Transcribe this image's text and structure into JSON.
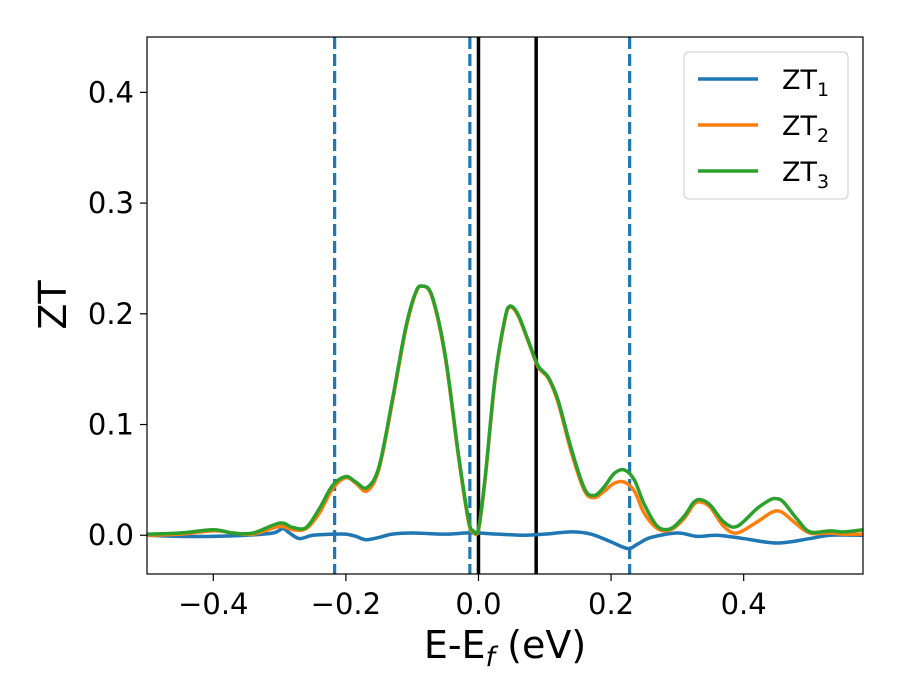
{
  "chart_data": {
    "type": "line",
    "xlabel": "E-E_f (eV)",
    "xlabel_parts": {
      "main": "E-E",
      "sub": "f",
      "tail": " (eV)"
    },
    "ylabel": "ZT",
    "xlim": [
      -0.5,
      0.58
    ],
    "ylim": [
      -0.035,
      0.45
    ],
    "xticks": [
      -0.4,
      -0.2,
      0.0,
      0.2,
      0.4
    ],
    "xtick_labels": [
      "−0.4",
      "−0.2",
      "0.0",
      "0.2",
      "0.4"
    ],
    "yticks": [
      0.0,
      0.1,
      0.2,
      0.3,
      0.4
    ],
    "ytick_labels": [
      "0.0",
      "0.1",
      "0.2",
      "0.3",
      "0.4"
    ],
    "grid": false,
    "legend_position": "top-right",
    "vlines": [
      {
        "x": -0.217,
        "style": "dashed",
        "color": "#1f77b4"
      },
      {
        "x": -0.013,
        "style": "dashed",
        "color": "#1f77b4"
      },
      {
        "x": 0.228,
        "style": "dashed",
        "color": "#1f77b4"
      },
      {
        "x": 0.0,
        "style": "solid",
        "color": "#000000"
      },
      {
        "x": 0.087,
        "style": "solid",
        "color": "#000000"
      }
    ],
    "series": [
      {
        "name": "ZT_1",
        "label_main": "ZT",
        "label_sub": "1",
        "color": "#1f77b4",
        "points": [
          [
            -0.5,
            0.0
          ],
          [
            -0.45,
            -0.001
          ],
          [
            -0.4,
            -0.001
          ],
          [
            -0.35,
            0.0
          ],
          [
            -0.31,
            0.002
          ],
          [
            -0.295,
            0.006
          ],
          [
            -0.285,
            0.002
          ],
          [
            -0.27,
            -0.003
          ],
          [
            -0.25,
            0.0
          ],
          [
            -0.22,
            0.001
          ],
          [
            -0.2,
            0.001
          ],
          [
            -0.185,
            -0.001
          ],
          [
            -0.17,
            -0.004
          ],
          [
            -0.15,
            -0.002
          ],
          [
            -0.13,
            0.001
          ],
          [
            -0.1,
            0.002
          ],
          [
            -0.05,
            0.001
          ],
          [
            -0.02,
            0.002
          ],
          [
            0.0,
            0.002
          ],
          [
            0.03,
            0.001
          ],
          [
            0.07,
            0.0
          ],
          [
            0.1,
            0.001
          ],
          [
            0.14,
            0.003
          ],
          [
            0.17,
            0.001
          ],
          [
            0.2,
            -0.006
          ],
          [
            0.225,
            -0.012
          ],
          [
            0.24,
            -0.008
          ],
          [
            0.26,
            -0.002
          ],
          [
            0.3,
            0.002
          ],
          [
            0.33,
            -0.001
          ],
          [
            0.36,
            0.0
          ],
          [
            0.4,
            -0.003
          ],
          [
            0.45,
            -0.007
          ],
          [
            0.5,
            -0.003
          ],
          [
            0.53,
            0.0
          ],
          [
            0.58,
            0.0
          ]
        ]
      },
      {
        "name": "ZT_2",
        "label_main": "ZT",
        "label_sub": "2",
        "color": "#ff7f0e",
        "points": [
          [
            -0.5,
            0.0
          ],
          [
            -0.45,
            0.001
          ],
          [
            -0.4,
            0.004
          ],
          [
            -0.37,
            0.002
          ],
          [
            -0.34,
            0.001
          ],
          [
            -0.3,
            0.008
          ],
          [
            -0.28,
            0.005
          ],
          [
            -0.26,
            0.006
          ],
          [
            -0.24,
            0.02
          ],
          [
            -0.22,
            0.042
          ],
          [
            -0.2,
            0.052
          ],
          [
            -0.185,
            0.047
          ],
          [
            -0.168,
            0.04
          ],
          [
            -0.15,
            0.06
          ],
          [
            -0.13,
            0.12
          ],
          [
            -0.11,
            0.185
          ],
          [
            -0.095,
            0.218
          ],
          [
            -0.085,
            0.225
          ],
          [
            -0.07,
            0.215
          ],
          [
            -0.05,
            0.16
          ],
          [
            -0.03,
            0.07
          ],
          [
            -0.015,
            0.012
          ],
          [
            -0.008,
            0.003
          ],
          [
            0.0,
            0.005
          ],
          [
            0.01,
            0.05
          ],
          [
            0.025,
            0.14
          ],
          [
            0.04,
            0.195
          ],
          [
            0.048,
            0.206
          ],
          [
            0.06,
            0.198
          ],
          [
            0.075,
            0.175
          ],
          [
            0.09,
            0.152
          ],
          [
            0.105,
            0.142
          ],
          [
            0.12,
            0.12
          ],
          [
            0.14,
            0.075
          ],
          [
            0.16,
            0.04
          ],
          [
            0.175,
            0.034
          ],
          [
            0.19,
            0.04
          ],
          [
            0.205,
            0.047
          ],
          [
            0.22,
            0.048
          ],
          [
            0.235,
            0.04
          ],
          [
            0.25,
            0.02
          ],
          [
            0.27,
            0.006
          ],
          [
            0.29,
            0.005
          ],
          [
            0.31,
            0.015
          ],
          [
            0.325,
            0.028
          ],
          [
            0.336,
            0.03
          ],
          [
            0.35,
            0.025
          ],
          [
            0.37,
            0.008
          ],
          [
            0.39,
            0.002
          ],
          [
            0.42,
            0.012
          ],
          [
            0.44,
            0.02
          ],
          [
            0.45,
            0.022
          ],
          [
            0.46,
            0.02
          ],
          [
            0.48,
            0.01
          ],
          [
            0.5,
            0.002
          ],
          [
            0.53,
            0.002
          ],
          [
            0.55,
            0.001
          ],
          [
            0.58,
            0.001
          ]
        ]
      },
      {
        "name": "ZT_3",
        "label_main": "ZT",
        "label_sub": "3",
        "color": "#2ca02c",
        "points": [
          [
            -0.5,
            0.001
          ],
          [
            -0.45,
            0.002
          ],
          [
            -0.4,
            0.005
          ],
          [
            -0.37,
            0.002
          ],
          [
            -0.34,
            0.002
          ],
          [
            -0.3,
            0.011
          ],
          [
            -0.28,
            0.007
          ],
          [
            -0.26,
            0.007
          ],
          [
            -0.24,
            0.024
          ],
          [
            -0.22,
            0.045
          ],
          [
            -0.2,
            0.053
          ],
          [
            -0.185,
            0.048
          ],
          [
            -0.168,
            0.043
          ],
          [
            -0.15,
            0.062
          ],
          [
            -0.13,
            0.122
          ],
          [
            -0.11,
            0.187
          ],
          [
            -0.095,
            0.219
          ],
          [
            -0.085,
            0.225
          ],
          [
            -0.07,
            0.216
          ],
          [
            -0.05,
            0.162
          ],
          [
            -0.03,
            0.072
          ],
          [
            -0.015,
            0.014
          ],
          [
            -0.008,
            0.004
          ],
          [
            0.0,
            0.006
          ],
          [
            0.01,
            0.052
          ],
          [
            0.025,
            0.142
          ],
          [
            0.04,
            0.196
          ],
          [
            0.048,
            0.207
          ],
          [
            0.06,
            0.199
          ],
          [
            0.075,
            0.176
          ],
          [
            0.09,
            0.153
          ],
          [
            0.105,
            0.143
          ],
          [
            0.12,
            0.122
          ],
          [
            0.14,
            0.078
          ],
          [
            0.16,
            0.042
          ],
          [
            0.175,
            0.036
          ],
          [
            0.19,
            0.044
          ],
          [
            0.205,
            0.056
          ],
          [
            0.22,
            0.059
          ],
          [
            0.235,
            0.05
          ],
          [
            0.25,
            0.028
          ],
          [
            0.27,
            0.008
          ],
          [
            0.29,
            0.006
          ],
          [
            0.31,
            0.017
          ],
          [
            0.325,
            0.03
          ],
          [
            0.336,
            0.032
          ],
          [
            0.35,
            0.027
          ],
          [
            0.37,
            0.012
          ],
          [
            0.39,
            0.008
          ],
          [
            0.42,
            0.024
          ],
          [
            0.44,
            0.032
          ],
          [
            0.45,
            0.033
          ],
          [
            0.46,
            0.03
          ],
          [
            0.48,
            0.015
          ],
          [
            0.5,
            0.003
          ],
          [
            0.53,
            0.004
          ],
          [
            0.55,
            0.003
          ],
          [
            0.58,
            0.005
          ]
        ]
      }
    ]
  }
}
